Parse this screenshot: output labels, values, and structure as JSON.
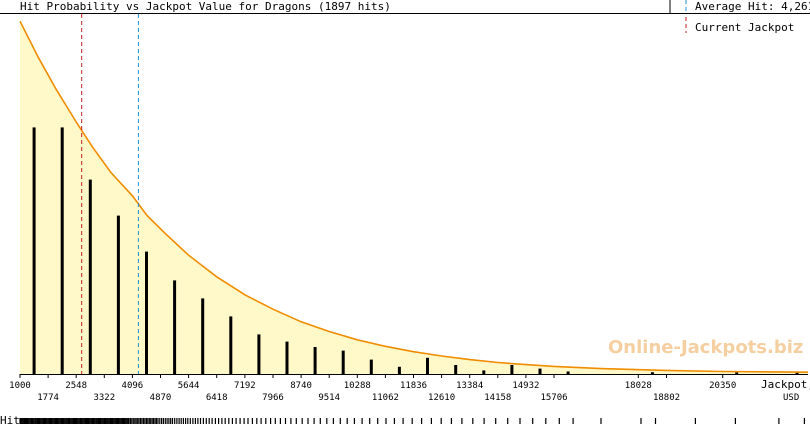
{
  "header": {
    "title": "Hit Probability vs Jackpot Value for Dragons (1897 hits)",
    "average_hit_label": "Average Hit: 4,261",
    "current_jackpot_label": "Current Jackpot"
  },
  "watermark": "Online-Jackpots.biz",
  "colors": {
    "curve": "#f08c00",
    "fill": "#fff8c8",
    "bars": "#000000",
    "average_line": "#1e8fd6",
    "current_line": "#c41e1e"
  },
  "chart_data": {
    "type": "bar",
    "title": "Hit Probability vs Jackpot Value for Dragons (1897 hits)",
    "xlabel": "Jackpot, USD",
    "xlabel_lines": [
      "Jackpot,",
      "USD"
    ],
    "ylabel": "",
    "xlim": [
      1000,
      22700
    ],
    "ylim": [
      0,
      1
    ],
    "grid": false,
    "ticks_upper": [
      "1000",
      "2548",
      "4096",
      "5644",
      "7192",
      "8740",
      "10288",
      "11836",
      "13384",
      "14932",
      "18028",
      "20350"
    ],
    "ticks_lower": [
      "1774",
      "3322",
      "4870",
      "6418",
      "7966",
      "9514",
      "11062",
      "12610",
      "14158",
      "15706",
      "18802"
    ],
    "bars": [
      {
        "x": 1387,
        "value": 0.685
      },
      {
        "x": 2161,
        "value": 0.685
      },
      {
        "x": 2935,
        "value": 0.54
      },
      {
        "x": 3709,
        "value": 0.44
      },
      {
        "x": 4483,
        "value": 0.34
      },
      {
        "x": 5257,
        "value": 0.26
      },
      {
        "x": 6031,
        "value": 0.21
      },
      {
        "x": 6805,
        "value": 0.16
      },
      {
        "x": 7579,
        "value": 0.11
      },
      {
        "x": 8353,
        "value": 0.09
      },
      {
        "x": 9127,
        "value": 0.075
      },
      {
        "x": 9901,
        "value": 0.065
      },
      {
        "x": 10675,
        "value": 0.04
      },
      {
        "x": 11449,
        "value": 0.02
      },
      {
        "x": 12223,
        "value": 0.045
      },
      {
        "x": 12997,
        "value": 0.025
      },
      {
        "x": 13771,
        "value": 0.01
      },
      {
        "x": 14545,
        "value": 0.025
      },
      {
        "x": 15319,
        "value": 0.015
      },
      {
        "x": 16093,
        "value": 0.007
      },
      {
        "x": 18415,
        "value": 0.005
      },
      {
        "x": 20737,
        "value": 0.004
      },
      {
        "x": 22400,
        "value": 0.005
      }
    ],
    "distribution_curve": [
      [
        1000,
        0.98
      ],
      [
        1500,
        0.88
      ],
      [
        2000,
        0.79
      ],
      [
        2548,
        0.7
      ],
      [
        3000,
        0.63
      ],
      [
        3500,
        0.56
      ],
      [
        4096,
        0.495
      ],
      [
        4500,
        0.44
      ],
      [
        5000,
        0.39
      ],
      [
        5644,
        0.33
      ],
      [
        6418,
        0.27
      ],
      [
        7192,
        0.22
      ],
      [
        7966,
        0.18
      ],
      [
        8740,
        0.145
      ],
      [
        9514,
        0.118
      ],
      [
        10288,
        0.095
      ],
      [
        11062,
        0.077
      ],
      [
        11836,
        0.062
      ],
      [
        12610,
        0.05
      ],
      [
        13384,
        0.04
      ],
      [
        14158,
        0.032
      ],
      [
        14932,
        0.026
      ],
      [
        15706,
        0.021
      ],
      [
        17000,
        0.015
      ],
      [
        18802,
        0.01
      ],
      [
        20350,
        0.007
      ],
      [
        22700,
        0.005
      ]
    ],
    "average_hit": 4261,
    "current_jackpot": 2700,
    "hits_label": "Hits",
    "hits_rug": [
      1000,
      1030,
      1060,
      1090,
      1120,
      1150,
      1180,
      1210,
      1240,
      1270,
      1300,
      1330,
      1360,
      1390,
      1420,
      1450,
      1480,
      1510,
      1540,
      1570,
      1600,
      1630,
      1660,
      1690,
      1720,
      1750,
      1780,
      1810,
      1840,
      1870,
      1900,
      1930,
      1960,
      1990,
      2020,
      2050,
      2080,
      2110,
      2140,
      2170,
      2200,
      2230,
      2260,
      2290,
      2320,
      2350,
      2380,
      2410,
      2440,
      2470,
      2500,
      2530,
      2560,
      2590,
      2620,
      2650,
      2680,
      2710,
      2740,
      2770,
      2800,
      2830,
      2860,
      2890,
      2920,
      2950,
      2980,
      3010,
      3040,
      3070,
      3100,
      3130,
      3160,
      3190,
      3220,
      3250,
      3280,
      3310,
      3340,
      3370,
      3400,
      3430,
      3460,
      3490,
      3520,
      3550,
      3580,
      3610,
      3640,
      3670,
      3700,
      3730,
      3760,
      3790,
      3820,
      3850,
      3880,
      3910,
      3940,
      3970,
      4000,
      4040,
      4080,
      4120,
      4160,
      4200,
      4240,
      4280,
      4320,
      4360,
      4400,
      4440,
      4480,
      4520,
      4560,
      4600,
      4640,
      4680,
      4720,
      4760,
      4800,
      4850,
      4900,
      4950,
      5000,
      5050,
      5100,
      5150,
      5200,
      5260,
      5320,
      5380,
      5440,
      5500,
      5560,
      5620,
      5690,
      5760,
      5830,
      5900,
      5970,
      6050,
      6130,
      6210,
      6290,
      6380,
      6470,
      6560,
      6650,
      6750,
      6850,
      6950,
      7060,
      7170,
      7280,
      7400,
      7520,
      7640,
      7770,
      7900,
      8030,
      8170,
      8310,
      8460,
      8610,
      8770,
      8930,
      9100,
      9270,
      9450,
      9630,
      9820,
      10010,
      10210,
      10420,
      10630,
      10850,
      11080,
      11310,
      11550,
      11800,
      12060,
      12330,
      12600,
      12880,
      13170,
      13470,
      13780,
      14100,
      14430,
      14770,
      15120,
      15480,
      15850,
      16230,
      17000,
      18100,
      18500,
      19600,
      20700,
      21900,
      22600
    ]
  }
}
